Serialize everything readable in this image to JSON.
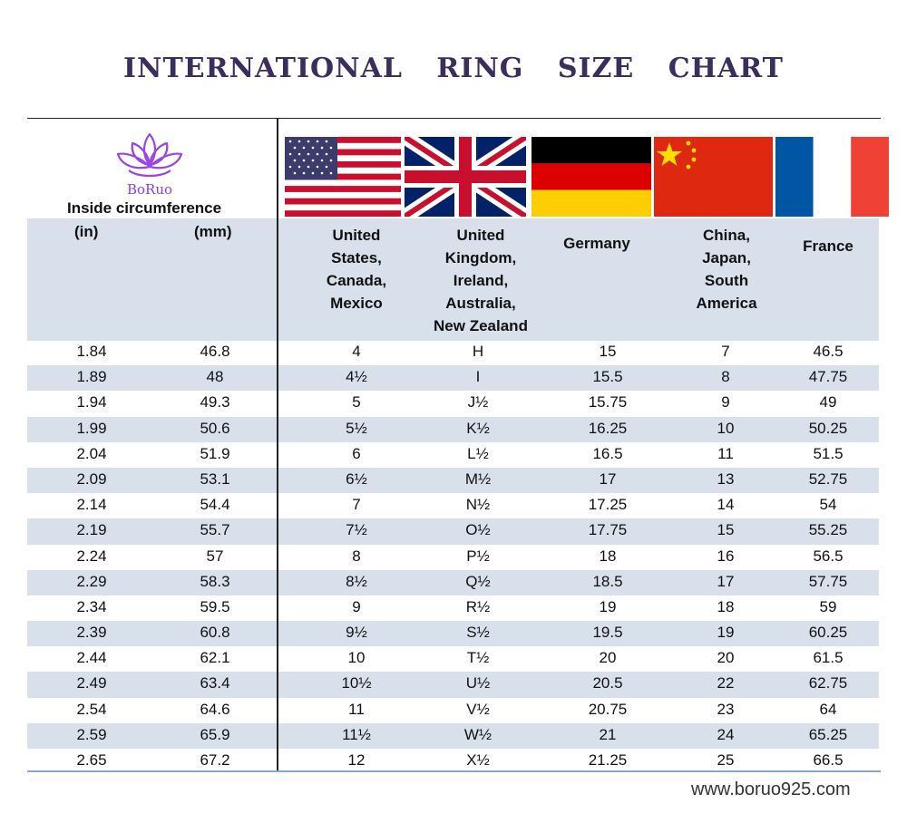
{
  "title": "INTERNATIONAL RING SIZE CHART",
  "brand": {
    "name": "BoRuo",
    "logo_icon": "lotus-icon",
    "logo_color": "#9b45e0"
  },
  "circumference_label": "Inside circumference",
  "units": {
    "in": "(in)",
    "mm": "(mm)"
  },
  "columns": [
    {
      "flag": "usa-flag-icon",
      "label_lines": [
        "United",
        "States,",
        "Canada,",
        "Mexico"
      ]
    },
    {
      "flag": "uk-flag-icon",
      "label_lines": [
        "United",
        "Kingdom,",
        "Ireland,",
        "Australia,",
        "New Zealand"
      ]
    },
    {
      "flag": "germany-flag-icon",
      "label_lines": [
        "Germany"
      ]
    },
    {
      "flag": "china-flag-icon",
      "label_lines": [
        "China,",
        "Japan,",
        "South",
        "America"
      ]
    },
    {
      "flag": "france-flag-icon",
      "label_lines": [
        "France"
      ]
    }
  ],
  "rows": [
    [
      "1.84",
      "46.8",
      "4",
      "H",
      "15",
      "7",
      "46.5"
    ],
    [
      "1.89",
      "48",
      "4½",
      "I",
      "15.5",
      "8",
      "47.75"
    ],
    [
      "1.94",
      "49.3",
      "5",
      "J½",
      "15.75",
      "9",
      "49"
    ],
    [
      "1.99",
      "50.6",
      "5½",
      "K½",
      "16.25",
      "10",
      "50.25"
    ],
    [
      "2.04",
      "51.9",
      "6",
      "L½",
      "16.5",
      "11",
      "51.5"
    ],
    [
      "2.09",
      "53.1",
      "6½",
      "M½",
      "17",
      "13",
      "52.75"
    ],
    [
      "2.14",
      "54.4",
      "7",
      "N½",
      "17.25",
      "14",
      "54"
    ],
    [
      "2.19",
      "55.7",
      "7½",
      "O½",
      "17.75",
      "15",
      "55.25"
    ],
    [
      "2.24",
      "57",
      "8",
      "P½",
      "18",
      "16",
      "56.5"
    ],
    [
      "2.29",
      "58.3",
      "8½",
      "Q½",
      "18.5",
      "17",
      "57.75"
    ],
    [
      "2.34",
      "59.5",
      "9",
      "R½",
      "19",
      "18",
      "59"
    ],
    [
      "2.39",
      "60.8",
      "9½",
      "S½",
      "19.5",
      "19",
      "60.25"
    ],
    [
      "2.44",
      "62.1",
      "10",
      "T½",
      "20",
      "20",
      "61.5"
    ],
    [
      "2.49",
      "63.4",
      "10½",
      "U½",
      "20.5",
      "22",
      "62.75"
    ],
    [
      "2.54",
      "64.6",
      "11",
      "V½",
      "20.75",
      "23",
      "64"
    ],
    [
      "2.59",
      "65.9",
      "11½",
      "W½",
      "21",
      "24",
      "65.25"
    ],
    [
      "2.65",
      "67.2",
      "12",
      "X½",
      "21.25",
      "25",
      "66.5"
    ]
  ],
  "website": "www.boruo925.com",
  "colors": {
    "stripe": "#d8e0ec",
    "title": "#3b2d5c",
    "rule": "#8aa6cc"
  }
}
